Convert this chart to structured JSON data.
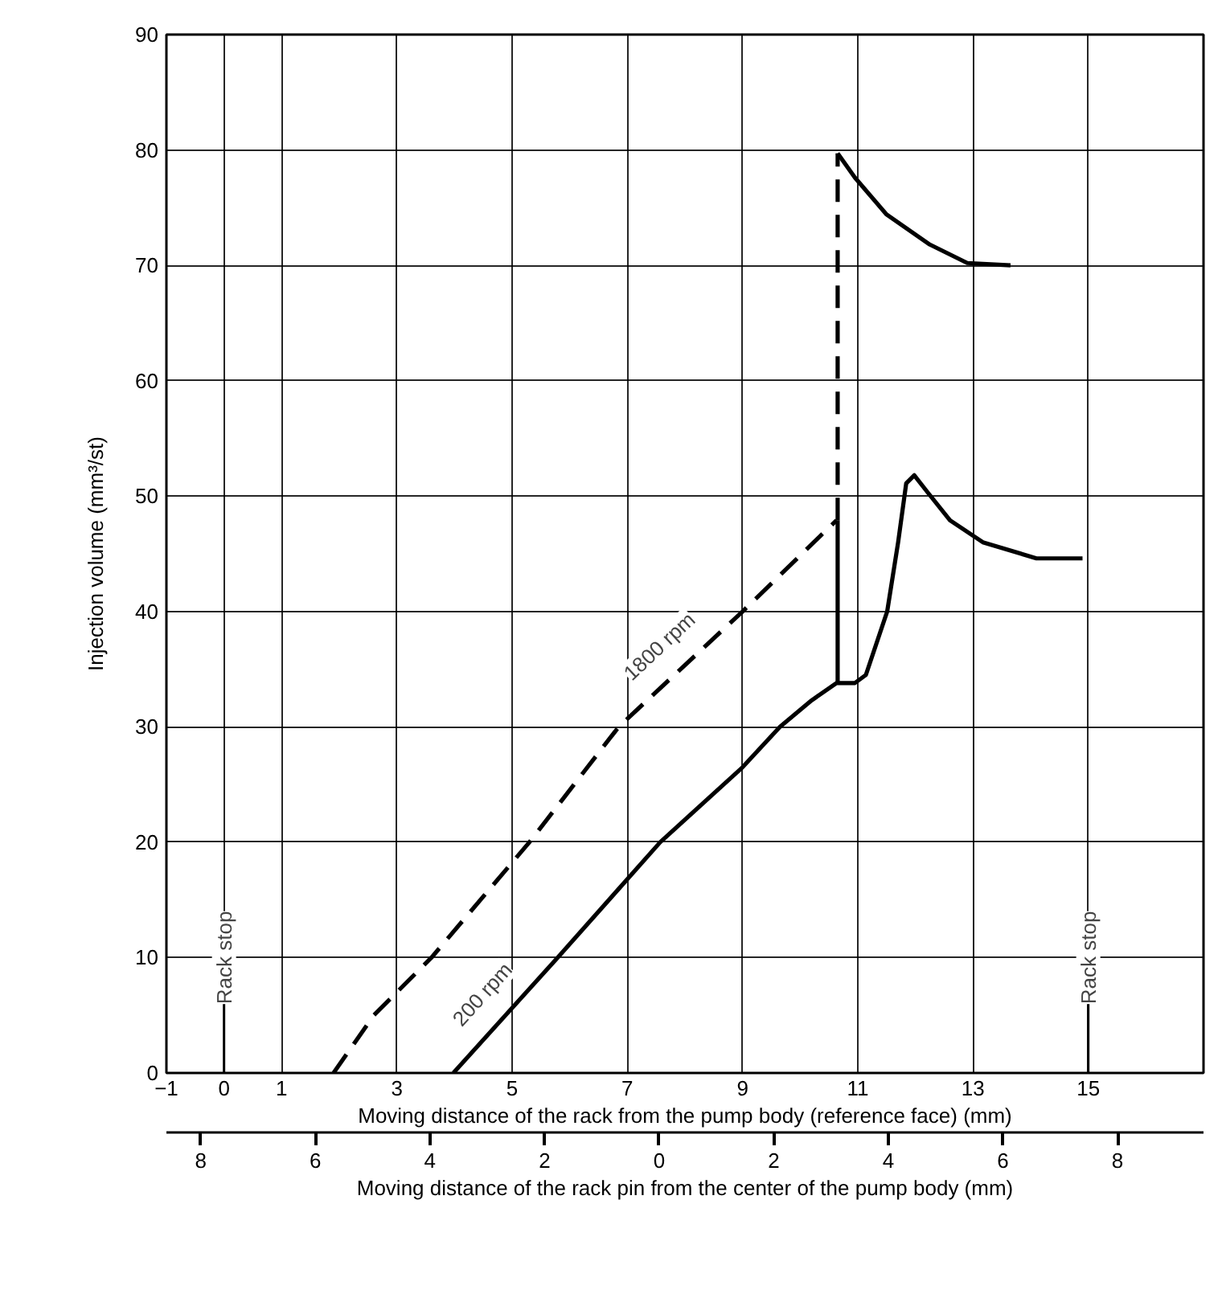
{
  "chart_data": {
    "type": "line",
    "xlabel": "Moving distance of the rack from the pump body (reference face) (mm)",
    "x2label": "Moving distance of the rack pin from the center of the pump body (mm)",
    "ylabel": "Injection volume (mm³/st)",
    "xlim": [
      -1,
      17
    ],
    "xticks": [
      {
        "value": -1,
        "label": "−1"
      },
      0,
      1,
      3,
      5,
      7,
      9,
      11,
      13,
      15
    ],
    "ylim": [
      0,
      90
    ],
    "yticks": [
      0,
      10,
      20,
      30,
      40,
      50,
      60,
      70,
      80,
      90
    ],
    "x2lim": [
      -8.6,
      9.5
    ],
    "x2ticks": [
      {
        "value": -8,
        "label": "8"
      },
      {
        "value": -6,
        "label": "6"
      },
      {
        "value": -4,
        "label": "4"
      },
      {
        "value": -2,
        "label": "2"
      },
      0,
      2,
      4,
      6,
      8
    ],
    "grid": true,
    "series": [
      {
        "name": "1800 rpm",
        "color": "#000000",
        "line_style": "dashed",
        "x": [
          1.9,
          2.6,
          3.6,
          5.3,
          6.85,
          9.0,
          10.63
        ],
        "values": [
          0,
          5,
          10,
          20,
          30,
          40,
          47.9
        ]
      },
      {
        "color": "#000000",
        "line_style": "dashed",
        "x": [
          10.65,
          10.65
        ],
        "values": [
          47.9,
          79.7
        ]
      },
      {
        "color": "#000000",
        "line_style": "solid",
        "x": [
          10.65,
          10.95,
          11.5,
          12.25,
          12.9,
          13.65
        ],
        "values": [
          79.7,
          77.6,
          74.4,
          71.8,
          70.2,
          70
        ]
      },
      {
        "name": "200 rpm",
        "color": "#000000",
        "line_style": "solid",
        "x": [
          3.98,
          5.79,
          7.57,
          9.0,
          9.65,
          10.2,
          10.63,
          10.95,
          11.14,
          11.51,
          11.7,
          11.84,
          11.98,
          12.2,
          12.6,
          13.17,
          14.1,
          14.9
        ],
        "values": [
          0,
          10,
          20,
          26.5,
          30,
          32.3,
          33.8,
          33.8,
          34.5,
          40,
          46,
          51.1,
          51.8,
          50.4,
          47.9,
          46,
          44.6,
          44.6
        ]
      },
      {
        "color": "#000000",
        "line_style": "solid",
        "x": [
          10.65,
          10.65
        ],
        "values": [
          33.8,
          47.9
        ]
      }
    ],
    "ref_lines": [
      {
        "axis": "x",
        "value": 0,
        "label": "Rack stop"
      },
      {
        "axis": "x",
        "value": 15,
        "label": "Rack stop"
      }
    ]
  }
}
